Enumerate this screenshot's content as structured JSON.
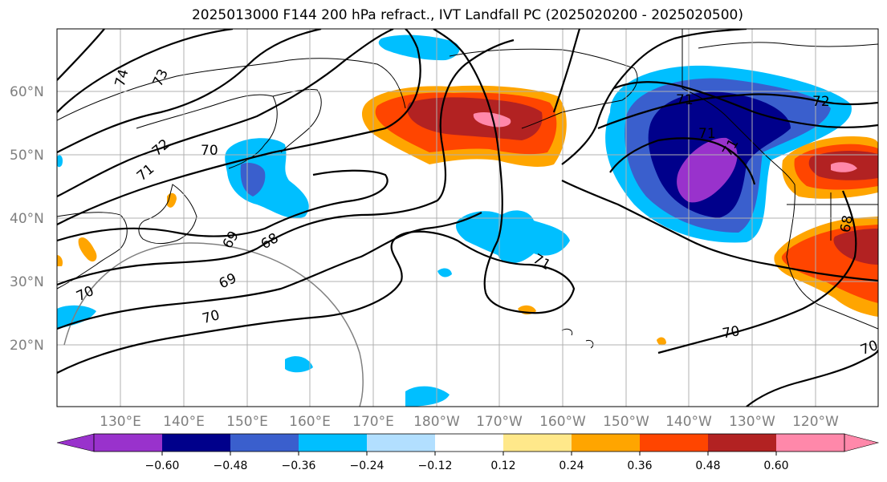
{
  "title": "2025013000 F144 200 hPa refract., IVT Landfall PC (2025020200 - 2025020500)",
  "lat_ticks": [
    "60°N",
    "50°N",
    "40°N",
    "30°N",
    "20°N"
  ],
  "lon_ticks": [
    "130°E",
    "140°E",
    "150°E",
    "160°E",
    "170°E",
    "180°W",
    "170°W",
    "160°W",
    "150°W",
    "140°W",
    "130°W",
    "120°W"
  ],
  "colorbar": {
    "colors": [
      "#9932cc",
      "#00008b",
      "#3a5fcd",
      "#00bfff",
      "#b2dfff",
      "#ffffff",
      "#ffe88a",
      "#ffa500",
      "#ff4500",
      "#b22222",
      "#ff88aa"
    ],
    "labels": [
      "−0.60",
      "−0.48",
      "−0.36",
      "−0.24",
      "−0.12",
      "0.12",
      "0.24",
      "0.36",
      "0.48",
      "0.60"
    ]
  },
  "contour_labels": [
    "74",
    "73",
    "72",
    "71",
    "70",
    "69",
    "68",
    "70",
    "69",
    "70",
    "71",
    "72",
    "71",
    "70",
    "68",
    "70",
    "71",
    "71"
  ]
}
